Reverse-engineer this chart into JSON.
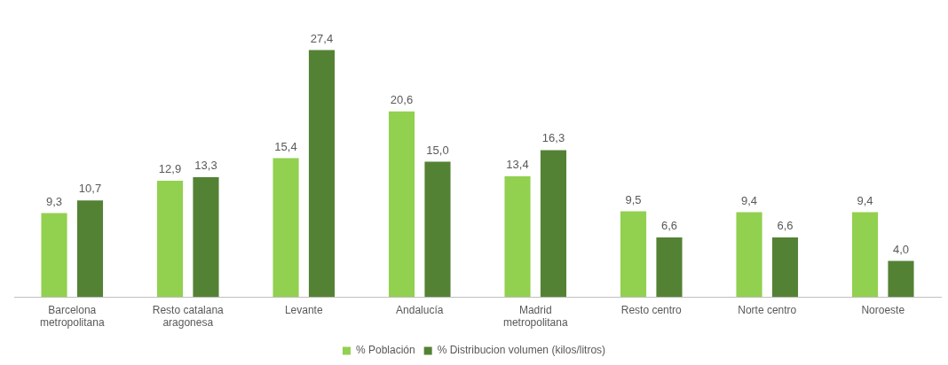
{
  "chart_data": {
    "type": "bar",
    "relative": false,
    "categories": [
      "Barcelona metropolitana",
      "Resto catalana aragonesa",
      "Levante",
      "Andalucía",
      "Madrid metropolitana",
      "Resto centro",
      "Norte centro",
      "Noroeste"
    ],
    "series": [
      {
        "name": "% Población",
        "color": "#92d050",
        "values": [
          9.3,
          12.9,
          15.4,
          20.6,
          13.4,
          9.5,
          9.4,
          9.4
        ],
        "value_labels": [
          "9,3",
          "12,9",
          "15,4",
          "20,6",
          "13,4",
          "9,5",
          "9,4",
          "9,4"
        ]
      },
      {
        "name": "% Distribucion volumen (kilos/litros)",
        "color": "#548235",
        "values": [
          10.7,
          13.3,
          27.4,
          15.0,
          16.3,
          6.6,
          6.6,
          4.0
        ],
        "value_labels": [
          "10,7",
          "13,3",
          "27,4",
          "15,0",
          "16,3",
          "6,6",
          "6,6",
          "4,0"
        ]
      }
    ],
    "legend": "bottom",
    "grid": false
  }
}
